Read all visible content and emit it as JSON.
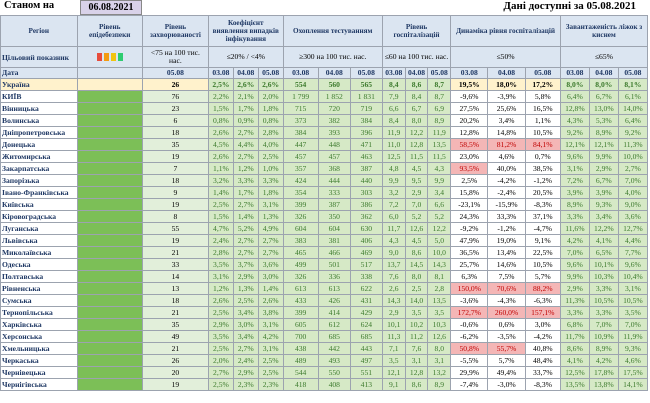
{
  "header": {
    "state_label": "Станом на",
    "state_date": "06.08.2021",
    "available": "Дані доступні за 05.08.2021"
  },
  "columns": {
    "region": "Регіон",
    "level": "Рівень епідебезпеки",
    "incidence": "Рівень захворюваності",
    "detection": "Коефіцієнт виявлення випадків інфікування",
    "testing": "Охоплення тестуванням",
    "hosp": "Рівень госпіталізацій",
    "dynamics": "Динаміка рівня госпіталізацій",
    "oxygen": "Завантаженість ліжок з киснем"
  },
  "targets": {
    "label": "Цільовий показник",
    "incidence": "<75 на 100 тис. нас.",
    "detection": "≤20% / <4%",
    "testing": "≥300 на 100 тис. нас.",
    "hosp": "≤60 на 100 тис. нас.",
    "dynamics": "≤50%",
    "oxygen": "≤65%"
  },
  "dates": {
    "label": "Дата",
    "incidence": "05.08",
    "d1": "03.08",
    "d2": "04.08",
    "d3": "05.08"
  },
  "signal_colors": [
    "#e74c3c",
    "#f39c12",
    "#f1c40f",
    "#2ecc71"
  ],
  "rows": [
    {
      "region": "Україна",
      "inc": "26",
      "det": [
        "2,5%",
        "2,6%",
        "2,6%"
      ],
      "test": [
        "554",
        "560",
        "565"
      ],
      "hosp": [
        "8,4",
        "8,6",
        "8,7"
      ],
      "dyn": [
        "19,5%",
        "18,0%",
        "17,2%"
      ],
      "oxy": [
        "8,0%",
        "8,0%",
        "8,1%"
      ]
    },
    {
      "region": "КИЇВ",
      "inc": "76",
      "det": [
        "2,2%",
        "2,1%",
        "2,0%"
      ],
      "test": [
        "1 799",
        "1 852",
        "1 831"
      ],
      "hosp": [
        "7,9",
        "8,4",
        "8,7"
      ],
      "dyn": [
        "-9,6%",
        "-3,9%",
        "5,8%"
      ],
      "oxy": [
        "6,4%",
        "6,7%",
        "6,1%"
      ]
    },
    {
      "region": "Вінницька",
      "inc": "23",
      "det": [
        "1,5%",
        "1,7%",
        "1,8%"
      ],
      "test": [
        "715",
        "720",
        "719"
      ],
      "hosp": [
        "6,6",
        "6,7",
        "6,9"
      ],
      "dyn": [
        "27,5%",
        "25,6%",
        "16,5%"
      ],
      "oxy": [
        "12,8%",
        "13,0%",
        "14,0%"
      ]
    },
    {
      "region": "Волинська",
      "inc": "6",
      "det": [
        "0,8%",
        "0,9%",
        "0,8%"
      ],
      "test": [
        "373",
        "382",
        "384"
      ],
      "hosp": [
        "8,4",
        "8,0",
        "8,9"
      ],
      "dyn": [
        "20,2%",
        "3,4%",
        "1,1%"
      ],
      "oxy": [
        "4,3%",
        "5,3%",
        "6,4%"
      ]
    },
    {
      "region": "Дніпропетровська",
      "inc": "18",
      "det": [
        "2,6%",
        "2,7%",
        "2,8%"
      ],
      "test": [
        "384",
        "393",
        "396"
      ],
      "hosp": [
        "11,9",
        "12,2",
        "11,9"
      ],
      "dyn": [
        "12,8%",
        "14,8%",
        "10,5%"
      ],
      "oxy": [
        "9,2%",
        "8,9%",
        "9,2%"
      ]
    },
    {
      "region": "Донецька",
      "inc": "35",
      "det": [
        "4,5%",
        "4,4%",
        "4,0%"
      ],
      "test": [
        "447",
        "448",
        "471"
      ],
      "hosp": [
        "11,0",
        "12,8",
        "13,5"
      ],
      "dyn": [
        "58,5%",
        "81,2%",
        "84,1%"
      ],
      "oxy": [
        "12,1%",
        "12,1%",
        "11,3%"
      ],
      "dynRed": [
        true,
        true,
        true
      ]
    },
    {
      "region": "Житомирська",
      "inc": "19",
      "det": [
        "2,6%",
        "2,7%",
        "2,5%"
      ],
      "test": [
        "457",
        "457",
        "463"
      ],
      "hosp": [
        "12,5",
        "11,5",
        "11,5"
      ],
      "dyn": [
        "23,0%",
        "4,6%",
        "0,7%"
      ],
      "oxy": [
        "9,6%",
        "9,9%",
        "10,0%"
      ]
    },
    {
      "region": "Закарпатська",
      "inc": "7",
      "det": [
        "1,1%",
        "1,2%",
        "1,0%"
      ],
      "test": [
        "357",
        "368",
        "387"
      ],
      "hosp": [
        "4,8",
        "4,5",
        "4,3"
      ],
      "dyn": [
        "93,5%",
        "40,0%",
        "38,5%"
      ],
      "oxy": [
        "3,1%",
        "2,9%",
        "2,7%"
      ],
      "dynRed": [
        true,
        false,
        false
      ]
    },
    {
      "region": "Запорізька",
      "inc": "18",
      "det": [
        "3,2%",
        "3,3%",
        "3,3%"
      ],
      "test": [
        "424",
        "444",
        "440"
      ],
      "hosp": [
        "9,9",
        "9,5",
        "9,9"
      ],
      "dyn": [
        "2,5%",
        "-4,2%",
        "-1,2%"
      ],
      "oxy": [
        "7,2%",
        "6,7%",
        "7,0%"
      ]
    },
    {
      "region": "Івано-Франківська",
      "inc": "9",
      "det": [
        "1,4%",
        "1,7%",
        "1,8%"
      ],
      "test": [
        "354",
        "333",
        "303"
      ],
      "hosp": [
        "3,2",
        "2,9",
        "3,4"
      ],
      "dyn": [
        "15,8%",
        "-2,4%",
        "20,5%"
      ],
      "oxy": [
        "3,9%",
        "3,9%",
        "4,0%"
      ]
    },
    {
      "region": "Київська",
      "inc": "19",
      "det": [
        "2,5%",
        "2,7%",
        "3,1%"
      ],
      "test": [
        "399",
        "387",
        "386"
      ],
      "hosp": [
        "7,2",
        "7,0",
        "6,6"
      ],
      "dyn": [
        "-23,1%",
        "-15,9%",
        "-8,3%"
      ],
      "oxy": [
        "8,9%",
        "9,3%",
        "9,0%"
      ]
    },
    {
      "region": "Кіровоградська",
      "inc": "8",
      "det": [
        "1,5%",
        "1,4%",
        "1,3%"
      ],
      "test": [
        "326",
        "350",
        "362"
      ],
      "hosp": [
        "6,0",
        "5,2",
        "5,2"
      ],
      "dyn": [
        "24,3%",
        "33,3%",
        "37,1%"
      ],
      "oxy": [
        "3,3%",
        "3,4%",
        "3,6%"
      ]
    },
    {
      "region": "Луганська",
      "inc": "55",
      "det": [
        "4,7%",
        "5,2%",
        "4,9%"
      ],
      "test": [
        "604",
        "604",
        "630"
      ],
      "hosp": [
        "11,7",
        "12,6",
        "12,2"
      ],
      "dyn": [
        "-9,2%",
        "-1,2%",
        "-4,7%"
      ],
      "oxy": [
        "11,6%",
        "12,2%",
        "12,7%"
      ]
    },
    {
      "region": "Львівська",
      "inc": "19",
      "det": [
        "2,4%",
        "2,7%",
        "2,7%"
      ],
      "test": [
        "383",
        "381",
        "406"
      ],
      "hosp": [
        "4,3",
        "4,5",
        "5,0"
      ],
      "dyn": [
        "47,9%",
        "19,0%",
        "9,1%"
      ],
      "oxy": [
        "4,2%",
        "4,1%",
        "4,4%"
      ]
    },
    {
      "region": "Миколаївська",
      "inc": "21",
      "det": [
        "2,8%",
        "2,7%",
        "2,7%"
      ],
      "test": [
        "465",
        "466",
        "469"
      ],
      "hosp": [
        "9,0",
        "8,6",
        "10,0"
      ],
      "dyn": [
        "36,5%",
        "13,4%",
        "22,5%"
      ],
      "oxy": [
        "7,0%",
        "6,5%",
        "7,7%"
      ]
    },
    {
      "region": "Одеська",
      "inc": "33",
      "det": [
        "3,5%",
        "3,7%",
        "3,6%"
      ],
      "test": [
        "499",
        "501",
        "517"
      ],
      "hosp": [
        "13,7",
        "14,5",
        "14,3"
      ],
      "dyn": [
        "25,7%",
        "14,6%",
        "10,5%"
      ],
      "oxy": [
        "9,6%",
        "10,1%",
        "9,6%"
      ]
    },
    {
      "region": "Полтавська",
      "inc": "14",
      "det": [
        "3,1%",
        "2,9%",
        "3,0%"
      ],
      "test": [
        "326",
        "336",
        "338"
      ],
      "hosp": [
        "7,6",
        "8,0",
        "8,1"
      ],
      "dyn": [
        "6,3%",
        "7,5%",
        "5,7%"
      ],
      "oxy": [
        "9,9%",
        "10,3%",
        "10,4%"
      ]
    },
    {
      "region": "Рівненська",
      "inc": "13",
      "det": [
        "1,2%",
        "1,3%",
        "1,4%"
      ],
      "test": [
        "613",
        "613",
        "622"
      ],
      "hosp": [
        "2,6",
        "2,5",
        "2,8"
      ],
      "dyn": [
        "150,0%",
        "70,6%",
        "88,2%"
      ],
      "oxy": [
        "2,9%",
        "3,3%",
        "3,1%"
      ],
      "dynRed": [
        true,
        true,
        true
      ]
    },
    {
      "region": "Сумська",
      "inc": "18",
      "det": [
        "2,6%",
        "2,5%",
        "2,6%"
      ],
      "test": [
        "433",
        "426",
        "431"
      ],
      "hosp": [
        "14,3",
        "14,0",
        "13,5"
      ],
      "dyn": [
        "-3,6%",
        "-4,3%",
        "-6,3%"
      ],
      "oxy": [
        "11,3%",
        "10,5%",
        "10,5%"
      ]
    },
    {
      "region": "Тернопільська",
      "inc": "21",
      "det": [
        "2,5%",
        "3,4%",
        "3,8%"
      ],
      "test": [
        "399",
        "414",
        "429"
      ],
      "hosp": [
        "2,9",
        "3,5",
        "3,5"
      ],
      "dyn": [
        "172,7%",
        "260,0%",
        "157,1%"
      ],
      "oxy": [
        "3,3%",
        "3,3%",
        "3,5%"
      ],
      "dynRed": [
        true,
        true,
        true
      ]
    },
    {
      "region": "Харківська",
      "inc": "35",
      "det": [
        "2,9%",
        "3,0%",
        "3,1%"
      ],
      "test": [
        "605",
        "612",
        "624"
      ],
      "hosp": [
        "10,1",
        "10,2",
        "10,3"
      ],
      "dyn": [
        "-0,6%",
        "0,6%",
        "3,0%"
      ],
      "oxy": [
        "6,8%",
        "7,0%",
        "7,0%"
      ]
    },
    {
      "region": "Херсонська",
      "inc": "49",
      "det": [
        "3,5%",
        "3,4%",
        "4,2%"
      ],
      "test": [
        "700",
        "685",
        "685"
      ],
      "hosp": [
        "11,3",
        "11,2",
        "12,6"
      ],
      "dyn": [
        "-6,2%",
        "-3,5%",
        "-4,2%"
      ],
      "oxy": [
        "11,7%",
        "10,9%",
        "11,9%"
      ]
    },
    {
      "region": "Хмельницька",
      "inc": "21",
      "det": [
        "2,5%",
        "2,7%",
        "3,1%"
      ],
      "test": [
        "438",
        "442",
        "443"
      ],
      "hosp": [
        "7,1",
        "7,6",
        "8,0"
      ],
      "dyn": [
        "50,8%",
        "55,7%",
        "40,8%"
      ],
      "oxy": [
        "8,6%",
        "8,9%",
        "9,3%"
      ],
      "dynRed": [
        true,
        true,
        false
      ]
    },
    {
      "region": "Черкаська",
      "inc": "26",
      "det": [
        "2,0%",
        "2,4%",
        "2,5%"
      ],
      "test": [
        "489",
        "493",
        "497"
      ],
      "hosp": [
        "3,5",
        "3,1",
        "3,1"
      ],
      "dyn": [
        "-5,5%",
        "5,7%",
        "48,4%"
      ],
      "oxy": [
        "4,1%",
        "4,2%",
        "4,6%"
      ]
    },
    {
      "region": "Чернівецька",
      "inc": "20",
      "det": [
        "2,7%",
        "2,9%",
        "2,5%"
      ],
      "test": [
        "544",
        "550",
        "551"
      ],
      "hosp": [
        "12,1",
        "12,8",
        "13,2"
      ],
      "dyn": [
        "29,9%",
        "49,4%",
        "33,7%"
      ],
      "oxy": [
        "12,5%",
        "17,8%",
        "17,5%"
      ]
    },
    {
      "region": "Чернігівська",
      "inc": "19",
      "det": [
        "2,5%",
        "2,3%",
        "2,3%"
      ],
      "test": [
        "418",
        "408",
        "413"
      ],
      "hosp": [
        "9,1",
        "8,6",
        "8,9"
      ],
      "dyn": [
        "-7,4%",
        "-3,0%",
        "-8,3%"
      ],
      "oxy": [
        "13,5%",
        "13,8%",
        "14,1%"
      ]
    }
  ]
}
